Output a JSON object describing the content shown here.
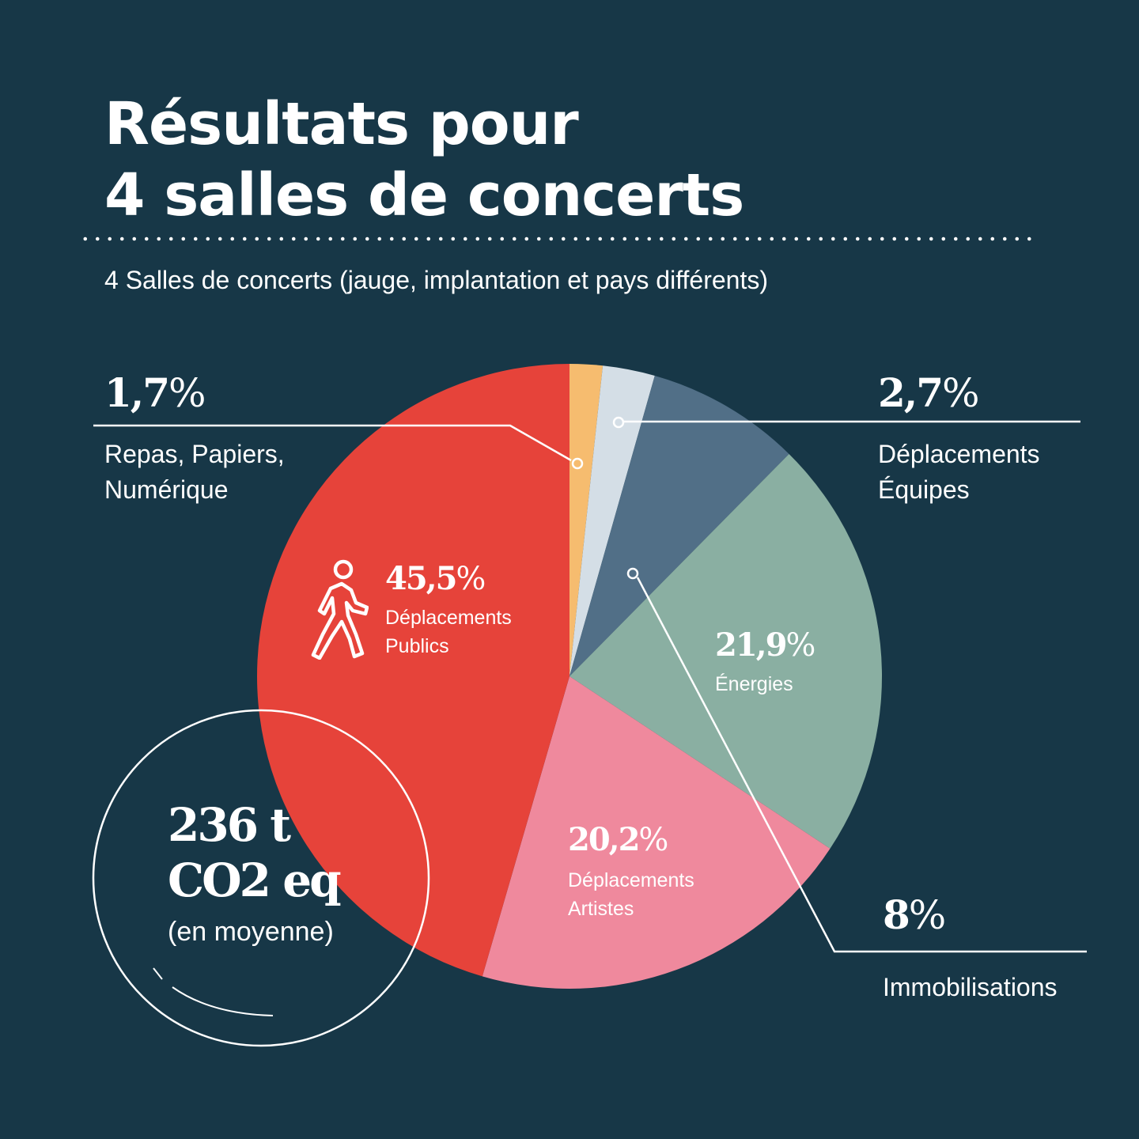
{
  "title_line1": "Résultats pour",
  "title_line2": "4 salles de concerts",
  "subtitle": "4 Salles de concerts (jauge, implantation et pays différents)",
  "total": {
    "line1": "236 t",
    "line2": "CO2 eq",
    "note": "(en moyenne)"
  },
  "chart_data": {
    "type": "pie",
    "total_label": "236 t CO2 eq (en moyenne)",
    "slices": [
      {
        "name": "Repas, Papiers, Numérique",
        "value": 1.7,
        "display": "1,7",
        "color": "#F6BC6F",
        "label_lines": [
          "Repas, Papiers,",
          "Numérique"
        ]
      },
      {
        "name": "Déplacements Équipes",
        "value": 2.7,
        "display": "2,7",
        "color": "#D4DEE6",
        "label_lines": [
          "Déplacements",
          "Équipes"
        ]
      },
      {
        "name": "Immobilisations",
        "value": 8,
        "display": "8",
        "color": "#516F87",
        "label_lines": [
          "Immobilisations"
        ]
      },
      {
        "name": "Énergies",
        "value": 21.9,
        "display": "21,9",
        "color": "#8AAFA2",
        "label_lines": [
          "Énergies"
        ]
      },
      {
        "name": "Déplacements Artistes",
        "value": 20.2,
        "display": "20,2",
        "color": "#EF899D",
        "label_lines": [
          "Déplacements",
          "Artistes"
        ]
      },
      {
        "name": "Déplacements Publics",
        "value": 45.5,
        "display": "45,5",
        "color": "#E6433A",
        "label_lines": [
          "Déplacements",
          "Publics"
        ]
      }
    ],
    "percent_sign": "%",
    "icon": "walking-person-icon"
  }
}
